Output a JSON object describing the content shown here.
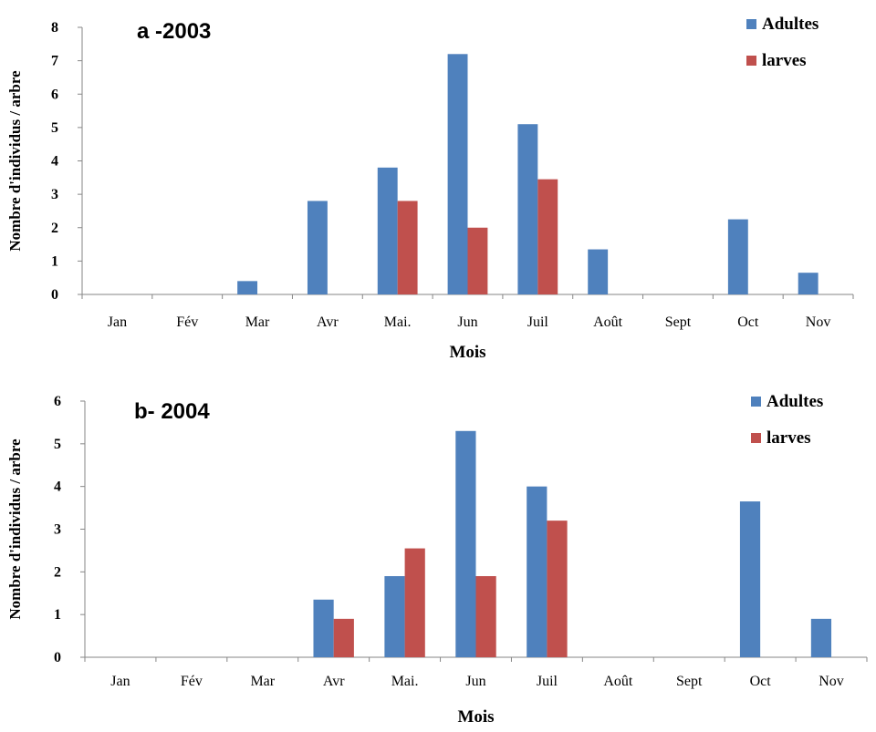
{
  "colors": {
    "adultes": "#4f81bd",
    "larves": "#c0504d",
    "axis": "#868686"
  },
  "chart_data": [
    {
      "type": "bar",
      "title": "a -2003",
      "xlabel": "Mois",
      "ylabel": "Nombre d'individus / arbre",
      "ylim": [
        0,
        8
      ],
      "yticks": [
        "0",
        "1",
        "2",
        "3",
        "4",
        "5",
        "6",
        "7",
        "8"
      ],
      "grid": false,
      "legend_position": "top-right",
      "categories": [
        "Jan",
        "Fév",
        "Mar",
        "Avr",
        "Mai.",
        "Jun",
        "Juil",
        "Août",
        "Sept",
        "Oct",
        "Nov"
      ],
      "series": [
        {
          "name": "Adultes",
          "values": [
            0,
            0,
            0.4,
            2.8,
            3.8,
            7.2,
            5.1,
            1.35,
            0,
            2.25,
            0.65
          ]
        },
        {
          "name": "larves",
          "values": [
            0,
            0,
            0,
            0,
            2.8,
            2.0,
            3.45,
            0,
            0,
            0,
            0
          ]
        }
      ]
    },
    {
      "type": "bar",
      "title": "b- 2004",
      "xlabel": "Mois",
      "ylabel": "Nombre d'individus / arbre",
      "ylim": [
        0,
        6
      ],
      "yticks": [
        "0",
        "1",
        "2",
        "3",
        "4",
        "5",
        "6"
      ],
      "grid": false,
      "legend_position": "top-right",
      "categories": [
        "Jan",
        "Fév",
        "Mar",
        "Avr",
        "Mai.",
        "Jun",
        "Juil",
        "Août",
        "Sept",
        "Oct",
        "Nov"
      ],
      "series": [
        {
          "name": "Adultes",
          "values": [
            0,
            0,
            0,
            1.35,
            1.9,
            5.3,
            4.0,
            0,
            0,
            3.65,
            0.9
          ]
        },
        {
          "name": "larves",
          "values": [
            0,
            0,
            0,
            0.9,
            2.55,
            1.9,
            3.2,
            0,
            0,
            0,
            0
          ]
        }
      ]
    }
  ]
}
